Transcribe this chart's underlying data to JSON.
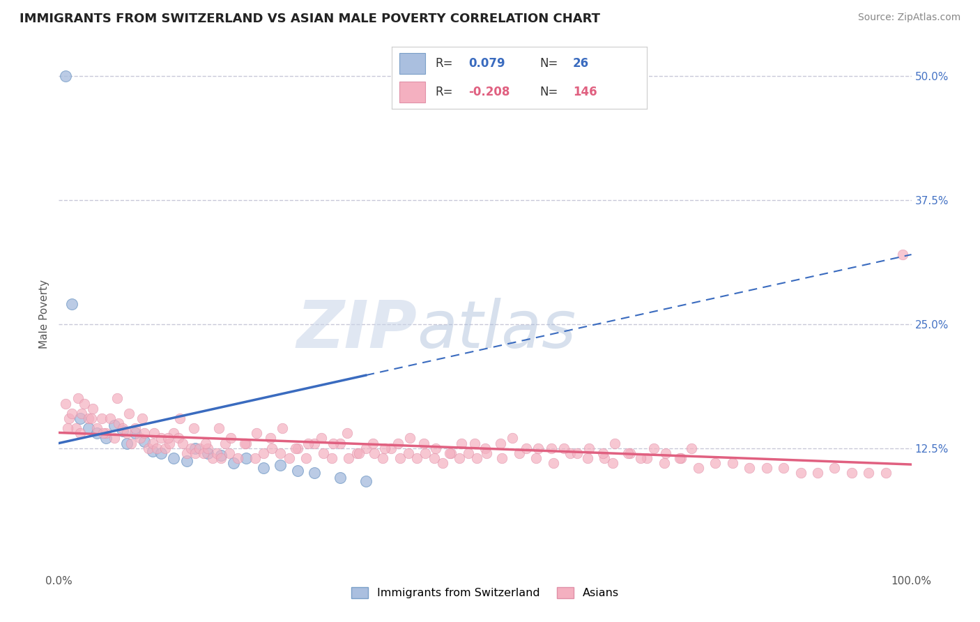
{
  "title": "IMMIGRANTS FROM SWITZERLAND VS ASIAN MALE POVERTY CORRELATION CHART",
  "source": "Source: ZipAtlas.com",
  "ylabel": "Male Poverty",
  "y_ticks": [
    12.5,
    25.0,
    37.5,
    50.0
  ],
  "y_tick_labels": [
    "12.5%",
    "25.0%",
    "37.5%",
    "50.0%"
  ],
  "x_ticks": [
    0,
    100
  ],
  "x_tick_labels": [
    "0.0%",
    "100.0%"
  ],
  "xlim": [
    0,
    100
  ],
  "ylim": [
    0,
    52
  ],
  "swiss_color": "#aabfdf",
  "swiss_edge": "#7a9fc8",
  "swiss_line_color": "#3a6bbf",
  "asian_color": "#f4b0c0",
  "asian_edge": "#e090a8",
  "asian_line_color": "#e06080",
  "grid_color": "#c8c8d8",
  "watermark_color": "#d8dff0",
  "right_tick_color": "#4472c4",
  "legend_R1": "0.079",
  "legend_N1": "26",
  "legend_R2": "-0.208",
  "legend_N2": "146",
  "legend_label1": "Immigrants from Switzerland",
  "legend_label2": "Asians",
  "swiss_x": [
    0.8,
    1.5,
    2.5,
    3.5,
    4.5,
    5.5,
    6.5,
    7.5,
    8.0,
    9.0,
    10.0,
    11.0,
    12.0,
    13.5,
    15.0,
    16.0,
    17.5,
    19.0,
    20.5,
    22.0,
    24.0,
    26.0,
    28.0,
    30.0,
    33.0,
    36.0
  ],
  "swiss_y": [
    50.0,
    27.0,
    15.5,
    14.5,
    14.0,
    13.5,
    14.8,
    14.2,
    13.0,
    14.0,
    13.2,
    12.2,
    12.0,
    11.5,
    11.2,
    12.5,
    12.0,
    11.8,
    11.0,
    11.5,
    10.5,
    10.8,
    10.2,
    10.0,
    9.5,
    9.2
  ],
  "asian_x": [
    0.8,
    1.2,
    1.5,
    2.0,
    2.3,
    2.7,
    3.0,
    3.5,
    4.0,
    4.5,
    5.0,
    5.5,
    6.0,
    6.5,
    7.0,
    7.5,
    8.0,
    8.5,
    9.0,
    9.5,
    10.0,
    10.5,
    11.0,
    11.5,
    12.0,
    12.5,
    13.0,
    13.5,
    14.0,
    14.5,
    15.0,
    15.5,
    16.0,
    16.5,
    17.0,
    17.5,
    18.0,
    18.5,
    19.0,
    19.5,
    20.0,
    21.0,
    22.0,
    23.0,
    24.0,
    25.0,
    26.0,
    27.0,
    28.0,
    29.0,
    30.0,
    31.0,
    32.0,
    33.0,
    34.0,
    35.0,
    36.0,
    37.0,
    38.0,
    39.0,
    40.0,
    41.0,
    42.0,
    43.0,
    44.0,
    45.0,
    46.0,
    47.0,
    48.0,
    49.0,
    50.0,
    52.0,
    54.0,
    56.0,
    58.0,
    60.0,
    62.0,
    64.0,
    65.0,
    67.0,
    69.0,
    71.0,
    73.0,
    75.0,
    77.0,
    79.0,
    81.0,
    83.0,
    85.0,
    87.0,
    89.0,
    91.0,
    93.0,
    95.0,
    97.0,
    99.0,
    1.0,
    2.5,
    3.8,
    5.2,
    6.8,
    8.2,
    9.8,
    11.2,
    12.8,
    14.2,
    15.8,
    17.2,
    18.8,
    20.2,
    21.8,
    23.2,
    24.8,
    26.2,
    27.8,
    29.2,
    30.8,
    32.2,
    33.8,
    35.2,
    36.8,
    38.2,
    39.8,
    41.2,
    42.8,
    44.2,
    45.8,
    47.2,
    48.8,
    50.2,
    51.8,
    53.2,
    54.8,
    56.2,
    57.8,
    59.2,
    60.8,
    62.2,
    63.8,
    65.2,
    66.8,
    68.2,
    69.8,
    71.2,
    72.8,
    74.2
  ],
  "asian_y": [
    17.0,
    15.5,
    16.0,
    14.5,
    17.5,
    16.0,
    17.0,
    15.5,
    16.5,
    14.5,
    15.5,
    14.0,
    15.5,
    13.5,
    15.0,
    14.5,
    14.0,
    13.0,
    14.5,
    13.5,
    14.0,
    12.5,
    13.0,
    12.5,
    13.5,
    12.5,
    13.0,
    14.0,
    13.5,
    13.0,
    12.0,
    12.5,
    12.0,
    12.5,
    12.0,
    12.5,
    11.5,
    12.0,
    11.5,
    13.0,
    12.0,
    11.5,
    13.0,
    11.5,
    12.0,
    12.5,
    12.0,
    11.5,
    12.5,
    11.5,
    13.0,
    12.0,
    11.5,
    13.0,
    11.5,
    12.0,
    12.5,
    12.0,
    11.5,
    12.5,
    11.5,
    12.0,
    11.5,
    12.0,
    11.5,
    11.0,
    12.0,
    11.5,
    12.0,
    11.5,
    12.5,
    11.5,
    12.0,
    11.5,
    11.0,
    12.0,
    11.5,
    11.5,
    11.0,
    12.0,
    11.5,
    11.0,
    11.5,
    10.5,
    11.0,
    11.0,
    10.5,
    10.5,
    10.5,
    10.0,
    10.0,
    10.5,
    10.0,
    10.0,
    10.0,
    32.0,
    14.5,
    14.0,
    15.5,
    14.0,
    17.5,
    16.0,
    15.5,
    14.0,
    13.5,
    15.5,
    14.5,
    13.0,
    14.5,
    13.5,
    13.0,
    14.0,
    13.5,
    14.5,
    12.5,
    13.0,
    13.5,
    13.0,
    14.0,
    12.0,
    13.0,
    12.5,
    13.0,
    13.5,
    13.0,
    12.5,
    12.0,
    13.0,
    13.0,
    12.0,
    13.0,
    13.5,
    12.5,
    12.5,
    12.5,
    12.5,
    12.0,
    12.5,
    12.0,
    13.0,
    12.0,
    11.5,
    12.5,
    12.0,
    11.5,
    12.5
  ]
}
